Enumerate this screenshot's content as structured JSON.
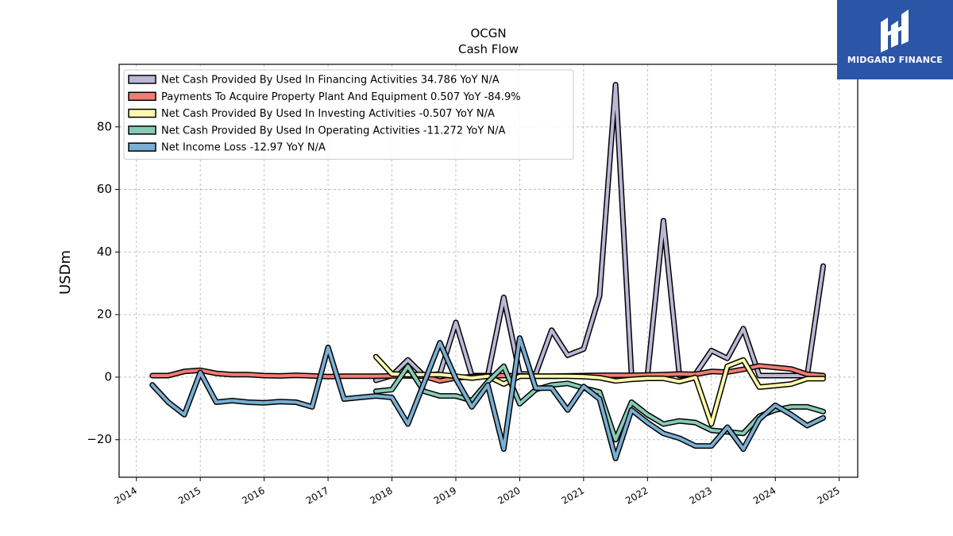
{
  "brand": {
    "name": "MIDGARD FINANCE"
  },
  "chart_data": {
    "type": "line",
    "title": "OCGN",
    "subtitle": "Cash Flow",
    "ylabel": "USDm",
    "xlabel": "",
    "xlim": [
      2013.73,
      2025.29
    ],
    "ylim": [
      -32,
      100
    ],
    "yticks": [
      -20,
      0,
      20,
      40,
      60,
      80
    ],
    "xticks": [
      "2014",
      "2015",
      "2016",
      "2017",
      "2018",
      "2019",
      "2020",
      "2021",
      "2022",
      "2023",
      "2024",
      "2025"
    ],
    "grid": true,
    "legend_position": "top-left",
    "series": [
      {
        "name": "Net Cash Provided By Used In Financing Activities  34.786 YoY N/A",
        "color": "#bcb7d6",
        "points": [
          [
            2017.75,
            -1
          ],
          [
            2018.0,
            0.5
          ],
          [
            2018.25,
            5.5
          ],
          [
            2018.5,
            0.5
          ],
          [
            2018.75,
            1
          ],
          [
            2019.0,
            17.5
          ],
          [
            2019.25,
            0.5
          ],
          [
            2019.5,
            0.5
          ],
          [
            2019.75,
            25.5
          ],
          [
            2020.0,
            1
          ],
          [
            2020.25,
            1
          ],
          [
            2020.5,
            15
          ],
          [
            2020.75,
            7
          ],
          [
            2021.0,
            9
          ],
          [
            2021.25,
            26
          ],
          [
            2021.5,
            93.5
          ],
          [
            2021.75,
            0.5
          ],
          [
            2022.0,
            0.5
          ],
          [
            2022.25,
            50
          ],
          [
            2022.5,
            0.5
          ],
          [
            2022.75,
            1
          ],
          [
            2023.0,
            8.5
          ],
          [
            2023.25,
            6
          ],
          [
            2023.5,
            15.5
          ],
          [
            2023.75,
            0.5
          ],
          [
            2024.0,
            0.5
          ],
          [
            2024.25,
            0.5
          ],
          [
            2024.5,
            0.5
          ],
          [
            2024.75,
            35.5
          ]
        ]
      },
      {
        "name": "Payments To Acquire Property Plant And Equipment  0.507 YoY -84.9%",
        "color": "#f27d72",
        "points": [
          [
            2014.25,
            0.5
          ],
          [
            2014.5,
            0.5
          ],
          [
            2014.75,
            1.8
          ],
          [
            2015.0,
            2.2
          ],
          [
            2015.25,
            1.2
          ],
          [
            2015.5,
            0.8
          ],
          [
            2015.75,
            0.8
          ],
          [
            2016.0,
            0.5
          ],
          [
            2016.25,
            0.4
          ],
          [
            2016.5,
            0.6
          ],
          [
            2016.75,
            0.4
          ],
          [
            2017.0,
            0.2
          ],
          [
            2017.25,
            0.3
          ],
          [
            2017.5,
            0.3
          ],
          [
            2017.75,
            0.3
          ],
          [
            2018.0,
            0.4
          ],
          [
            2018.25,
            0.4
          ],
          [
            2018.5,
            0.3
          ],
          [
            2018.75,
            -1.2
          ],
          [
            2019.0,
            -0.3
          ],
          [
            2019.25,
            0.2
          ],
          [
            2019.5,
            0.4
          ],
          [
            2019.75,
            0.5
          ],
          [
            2020.0,
            0.4
          ],
          [
            2020.25,
            0.3
          ],
          [
            2020.5,
            0.3
          ],
          [
            2020.75,
            0.4
          ],
          [
            2021.0,
            0.5
          ],
          [
            2021.25,
            0.6
          ],
          [
            2021.5,
            0.6
          ],
          [
            2021.75,
            0.6
          ],
          [
            2022.0,
            0.7
          ],
          [
            2022.25,
            0.8
          ],
          [
            2022.5,
            1.0
          ],
          [
            2022.75,
            0.9
          ],
          [
            2023.0,
            1.8
          ],
          [
            2023.25,
            1.6
          ],
          [
            2023.5,
            2.5
          ],
          [
            2023.75,
            3.6
          ],
          [
            2024.0,
            3.1
          ],
          [
            2024.25,
            2.6
          ],
          [
            2024.5,
            0.9
          ],
          [
            2024.75,
            0.5
          ]
        ]
      },
      {
        "name": "Net Cash Provided By Used In Investing Activities  -0.507 YoY N/A",
        "color": "#fdfbab",
        "points": [
          [
            2017.75,
            6.5
          ],
          [
            2018.0,
            1
          ],
          [
            2018.25,
            0.8
          ],
          [
            2018.5,
            0.8
          ],
          [
            2018.75,
            0.8
          ],
          [
            2019.0,
            0.3
          ],
          [
            2019.25,
            -0.3
          ],
          [
            2019.5,
            0.3
          ],
          [
            2019.75,
            -2.2
          ],
          [
            2020.0,
            0.3
          ],
          [
            2020.25,
            0.3
          ],
          [
            2020.5,
            0.3
          ],
          [
            2020.75,
            0.3
          ],
          [
            2021.0,
            0.2
          ],
          [
            2021.25,
            -0.2
          ],
          [
            2021.5,
            -1.2
          ],
          [
            2021.75,
            -0.7
          ],
          [
            2022.0,
            -0.4
          ],
          [
            2022.25,
            -0.4
          ],
          [
            2022.5,
            -1.4
          ],
          [
            2022.75,
            -0.1
          ],
          [
            2023.0,
            -15
          ],
          [
            2023.25,
            3.5
          ],
          [
            2023.5,
            5.5
          ],
          [
            2023.75,
            -3.2
          ],
          [
            2024.0,
            -2.7
          ],
          [
            2024.25,
            -2.2
          ],
          [
            2024.5,
            -0.5
          ],
          [
            2024.75,
            -0.5
          ]
        ]
      },
      {
        "name": "Net Cash Provided By Used In Operating Activities  -11.272 YoY N/A",
        "color": "#86cbb7",
        "points": [
          [
            2017.75,
            -4.5
          ],
          [
            2018.0,
            -4
          ],
          [
            2018.25,
            3.5
          ],
          [
            2018.5,
            -4.5
          ],
          [
            2018.75,
            -6
          ],
          [
            2019.0,
            -6
          ],
          [
            2019.25,
            -7.5
          ],
          [
            2019.5,
            -1.5
          ],
          [
            2019.75,
            3.5
          ],
          [
            2020.0,
            -8.5
          ],
          [
            2020.25,
            -4
          ],
          [
            2020.5,
            -2.5
          ],
          [
            2020.75,
            -2
          ],
          [
            2021.0,
            -3.5
          ],
          [
            2021.25,
            -4.8
          ],
          [
            2021.5,
            -20
          ],
          [
            2021.75,
            -8
          ],
          [
            2022.0,
            -12
          ],
          [
            2022.25,
            -15
          ],
          [
            2022.5,
            -14
          ],
          [
            2022.75,
            -14.5
          ],
          [
            2023.0,
            -17
          ],
          [
            2023.25,
            -17.5
          ],
          [
            2023.5,
            -18
          ],
          [
            2023.75,
            -12.5
          ],
          [
            2024.0,
            -10.5
          ],
          [
            2024.25,
            -9.5
          ],
          [
            2024.5,
            -9.5
          ],
          [
            2024.75,
            -11
          ]
        ]
      },
      {
        "name": "Net Income Loss  -12.97 YoY N/A",
        "color": "#7aaed3",
        "points": [
          [
            2014.25,
            -2.5
          ],
          [
            2014.5,
            -8
          ],
          [
            2014.75,
            -12
          ],
          [
            2015.0,
            1.5
          ],
          [
            2015.25,
            -8
          ],
          [
            2015.5,
            -7.5
          ],
          [
            2015.75,
            -8
          ],
          [
            2016.0,
            -8.2
          ],
          [
            2016.25,
            -7.8
          ],
          [
            2016.5,
            -8
          ],
          [
            2016.75,
            -9.5
          ],
          [
            2017.0,
            9.5
          ],
          [
            2017.25,
            -7
          ],
          [
            2017.5,
            -6.5
          ],
          [
            2017.75,
            -6
          ],
          [
            2018.0,
            -6.5
          ],
          [
            2018.25,
            -15
          ],
          [
            2018.5,
            -2
          ],
          [
            2018.75,
            11
          ],
          [
            2019.0,
            -0.5
          ],
          [
            2019.25,
            -9.5
          ],
          [
            2019.5,
            -2.5
          ],
          [
            2019.75,
            -23
          ],
          [
            2020.0,
            12.5
          ],
          [
            2020.25,
            -3.5
          ],
          [
            2020.5,
            -3.5
          ],
          [
            2020.75,
            -10.5
          ],
          [
            2021.0,
            -3
          ],
          [
            2021.25,
            -7
          ],
          [
            2021.5,
            -26
          ],
          [
            2021.75,
            -10.5
          ],
          [
            2022.0,
            -14.5
          ],
          [
            2022.25,
            -18
          ],
          [
            2022.5,
            -19.5
          ],
          [
            2022.75,
            -22
          ],
          [
            2023.0,
            -22
          ],
          [
            2023.25,
            -16
          ],
          [
            2023.5,
            -23
          ],
          [
            2023.75,
            -13.5
          ],
          [
            2024.0,
            -9
          ],
          [
            2024.25,
            -12
          ],
          [
            2024.5,
            -15.5
          ],
          [
            2024.75,
            -13
          ]
        ]
      }
    ]
  }
}
